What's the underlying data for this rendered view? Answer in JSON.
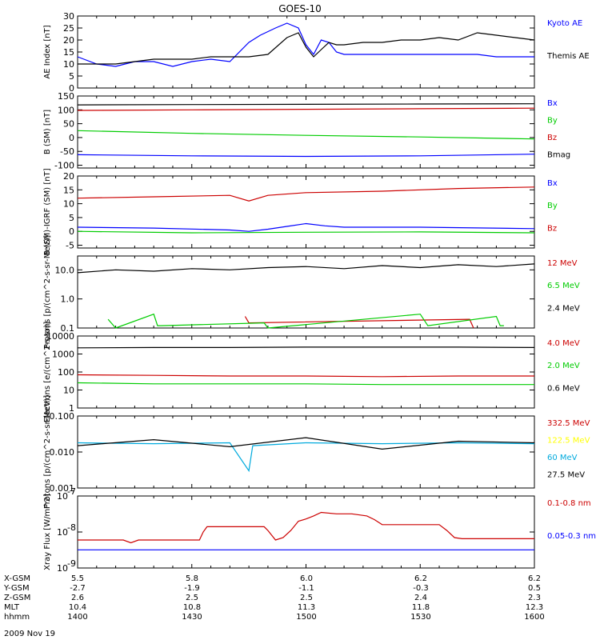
{
  "figure": {
    "title": "GOES-10",
    "date": "2009 Nov 19"
  },
  "ephemeris": {
    "rows": [
      {
        "label": "X-GSM",
        "values": [
          "5.5",
          "5.8",
          "6.0",
          "6.2",
          "6.2"
        ]
      },
      {
        "label": "Y-GSM",
        "values": [
          "-2.7",
          "-1.9",
          "-1.1",
          "-0.3",
          "0.5"
        ]
      },
      {
        "label": "Z-GSM",
        "values": [
          "2.6",
          "2.5",
          "2.5",
          "2.4",
          "2.3"
        ]
      },
      {
        "label": "MLT",
        "values": [
          "10.4",
          "10.8",
          "11.3",
          "11.8",
          "12.3"
        ]
      },
      {
        "label": "hhmm",
        "values": [
          "1400",
          "1430",
          "1500",
          "1530",
          "1600"
        ]
      }
    ]
  },
  "chart_data": [
    {
      "type": "line",
      "ylabel": "AE Index [nT]",
      "ylim": [
        0,
        30
      ],
      "yscale": "linear",
      "yticks": [
        0,
        5,
        10,
        15,
        20,
        25,
        30
      ],
      "ytick_labels": [
        "0",
        "5",
        "10",
        "15",
        "20",
        "25",
        "30"
      ],
      "xlim": [
        1400,
        1600
      ],
      "x_unit": "hhmm",
      "series": [
        {
          "name": "Kyoto AE",
          "color": "#0000ff",
          "x": [
            1400,
            1405,
            1410,
            1415,
            1420,
            1425,
            1430,
            1435,
            1440,
            1445,
            1448,
            1452,
            1455,
            1458,
            1500,
            1502,
            1504,
            1506,
            1508,
            1510,
            1515,
            1520,
            1530,
            1540,
            1545,
            1550,
            1555,
            1600
          ],
          "values": [
            13,
            10,
            9,
            11,
            11,
            9,
            11,
            12,
            11,
            19,
            22,
            25,
            27,
            25,
            18,
            14,
            20,
            19,
            15,
            14,
            14,
            14,
            14,
            14,
            14,
            13,
            13,
            13
          ]
        },
        {
          "name": "Themis AE",
          "color": "#000000",
          "x": [
            1400,
            1405,
            1410,
            1415,
            1420,
            1425,
            1430,
            1435,
            1440,
            1445,
            1450,
            1455,
            1458,
            1500,
            1502,
            1504,
            1506,
            1508,
            1510,
            1515,
            1520,
            1525,
            1530,
            1535,
            1540,
            1545,
            1550,
            1555,
            1600
          ],
          "values": [
            10,
            10,
            10,
            11,
            12,
            12,
            12,
            13,
            13,
            13,
            14,
            21,
            23,
            17,
            13,
            16,
            19,
            18,
            18,
            19,
            19,
            20,
            20,
            21,
            20,
            23,
            22,
            21,
            20
          ]
        }
      ]
    },
    {
      "type": "line",
      "ylabel": "B (SM) [nT]",
      "ylim": [
        -110,
        150
      ],
      "yscale": "linear",
      "yticks": [
        -100,
        -50,
        0,
        50,
        100,
        150
      ],
      "ytick_labels": [
        "-100",
        "-50",
        "0",
        "50",
        "100",
        "150"
      ],
      "xlim": [
        1400,
        1600
      ],
      "x_unit": "hhmm",
      "series": [
        {
          "name": "Bx",
          "color": "#0000ff",
          "x": [
            1400,
            1430,
            1500,
            1530,
            1600
          ],
          "values": [
            -62,
            -66,
            -68,
            -66,
            -60
          ]
        },
        {
          "name": "By",
          "color": "#00cc00",
          "x": [
            1400,
            1430,
            1500,
            1530,
            1600
          ],
          "values": [
            25,
            15,
            8,
            2,
            -5
          ]
        },
        {
          "name": "Bz",
          "color": "#cc0000",
          "x": [
            1400,
            1430,
            1500,
            1530,
            1600
          ],
          "values": [
            98,
            100,
            102,
            104,
            106
          ]
        },
        {
          "name": "Bmag",
          "color": "#000000",
          "x": [
            1400,
            1430,
            1500,
            1530,
            1600
          ],
          "values": [
            118,
            119,
            120,
            121,
            122
          ]
        }
      ]
    },
    {
      "type": "line",
      "ylabel": "B (SM)-IGRF (SM) [nT]",
      "ylim": [
        -6,
        20
      ],
      "yscale": "linear",
      "yticks": [
        -5,
        0,
        5,
        10,
        15,
        20
      ],
      "ytick_labels": [
        "-5",
        "0",
        "5",
        "10",
        "15",
        "20"
      ],
      "xlim": [
        1400,
        1600
      ],
      "x_unit": "hhmm",
      "series": [
        {
          "name": "Bx",
          "color": "#0000ff",
          "x": [
            1400,
            1420,
            1440,
            1445,
            1450,
            1455,
            1500,
            1505,
            1510,
            1530,
            1600
          ],
          "values": [
            1.5,
            1.2,
            0.5,
            0,
            0.8,
            1.8,
            2.8,
            2.0,
            1.5,
            1.5,
            1.0
          ]
        },
        {
          "name": "By",
          "color": "#00cc00",
          "x": [
            1400,
            1430,
            1500,
            1530,
            1600
          ],
          "values": [
            0,
            -0.5,
            -0.3,
            -0.2,
            -0.5
          ]
        },
        {
          "name": "Bz",
          "color": "#cc0000",
          "x": [
            1400,
            1420,
            1440,
            1445,
            1450,
            1500,
            1520,
            1540,
            1600
          ],
          "values": [
            12,
            12.5,
            13,
            11,
            13,
            14,
            14.5,
            15.5,
            16
          ]
        }
      ]
    },
    {
      "type": "line",
      "ylabel": "Protons [p/(cm^2-s-sr-MeV)]",
      "ylim": [
        0.1,
        30
      ],
      "yscale": "log",
      "yticks": [
        0.1,
        1,
        10
      ],
      "ytick_labels": [
        "0.1",
        "1.0",
        "10.0"
      ],
      "xlim": [
        1400,
        1600
      ],
      "x_unit": "hhmm",
      "series": [
        {
          "name": "12 MeV",
          "color": "#cc0000",
          "x": [
            1444,
            1445,
            1543,
            1544
          ],
          "values": [
            0.25,
            0.15,
            0.2,
            0.1
          ]
        },
        {
          "name": "6.5 MeV",
          "color": "#00cc00",
          "x": [
            1408,
            1410,
            1420,
            1421,
            1422,
            1449,
            1450,
            1530,
            1532,
            1550,
            1551,
            1552
          ],
          "values": [
            0.2,
            0.1,
            0.3,
            0.12,
            0.12,
            0.15,
            0.1,
            0.3,
            0.12,
            0.25,
            0.12,
            0.12
          ]
        },
        {
          "name": "2.4 MeV",
          "color": "#000000",
          "x": [
            1400,
            1410,
            1420,
            1430,
            1440,
            1450,
            1500,
            1510,
            1520,
            1530,
            1540,
            1550,
            1600
          ],
          "values": [
            8,
            10,
            9,
            11,
            10,
            12,
            13,
            11,
            14,
            12,
            15,
            13,
            16
          ]
        }
      ]
    },
    {
      "type": "line",
      "ylabel": "Electrons [e/(cm^2-s-sr)]",
      "ylim": [
        1,
        10000
      ],
      "yscale": "log",
      "yticks": [
        1,
        10,
        100,
        1000,
        10000
      ],
      "ytick_labels": [
        "1",
        "10",
        "100",
        "1000",
        "10000"
      ],
      "xlim": [
        1400,
        1600
      ],
      "x_unit": "hhmm",
      "series": [
        {
          "name": "4.0 MeV",
          "color": "#cc0000",
          "x": [
            1400,
            1420,
            1440,
            1500,
            1520,
            1540,
            1600
          ],
          "values": [
            70,
            65,
            60,
            60,
            55,
            60,
            60
          ]
        },
        {
          "name": "2.0 MeV",
          "color": "#00cc00",
          "x": [
            1400,
            1420,
            1440,
            1500,
            1520,
            1540,
            1600
          ],
          "values": [
            25,
            22,
            22,
            22,
            20,
            20,
            20
          ]
        },
        {
          "name": "0.6 MeV",
          "color": "#000000",
          "x": [
            1400,
            1420,
            1440,
            1500,
            1520,
            1540,
            1600
          ],
          "values": [
            2200,
            2300,
            2300,
            2400,
            2400,
            2400,
            2300
          ]
        }
      ]
    },
    {
      "type": "line",
      "ylabel": "Protons [p/(cm^2-s-sr-MeV)]",
      "ylim": [
        0.001,
        0.1
      ],
      "yscale": "log",
      "yticks": [
        0.001,
        0.01,
        0.1
      ],
      "ytick_labels": [
        "0.001",
        "0.010",
        "0.100"
      ],
      "xlim": [
        1400,
        1600
      ],
      "x_unit": "hhmm",
      "series": [
        {
          "name": "332.5 MeV",
          "color": "#cc0000",
          "x": [],
          "values": []
        },
        {
          "name": "122.5 MeV",
          "color": "#ffff00",
          "x": [],
          "values": []
        },
        {
          "name": "60 MeV",
          "color": "#00aadd",
          "x": [
            1400,
            1420,
            1440,
            1445,
            1446,
            1500,
            1520,
            1540,
            1600
          ],
          "values": [
            0.018,
            0.017,
            0.018,
            0.003,
            0.015,
            0.018,
            0.017,
            0.018,
            0.017
          ]
        },
        {
          "name": "27.5 MeV",
          "color": "#000000",
          "x": [
            1400,
            1420,
            1440,
            1500,
            1520,
            1540,
            1600
          ],
          "values": [
            0.015,
            0.022,
            0.014,
            0.025,
            0.012,
            0.02,
            0.018
          ]
        }
      ]
    },
    {
      "type": "line",
      "ylabel": "Xray Flux [W/m^2]",
      "ylim": [
        1e-09,
        1e-07
      ],
      "yscale": "log",
      "yticks": [
        1e-09,
        1e-08,
        1e-07
      ],
      "ytick_labels": [
        "10^-9",
        "10^-8",
        "10^-7"
      ],
      "xlim": [
        1400,
        1600
      ],
      "x_unit": "hhmm",
      "series": [
        {
          "name": "0.1-0.8 nm",
          "color": "#cc0000",
          "x": [
            1400,
            1412,
            1414,
            1416,
            1432,
            1433,
            1434,
            1449,
            1450,
            1452,
            1454,
            1456,
            1458,
            1500,
            1502,
            1504,
            1508,
            1512,
            1516,
            1518,
            1520,
            1535,
            1537,
            1539,
            1541,
            1600
          ],
          "values": [
            6e-09,
            6e-09,
            5e-09,
            6e-09,
            6e-09,
            1e-08,
            1.4e-08,
            1.4e-08,
            1.1e-08,
            6e-09,
            7e-09,
            1.1e-08,
            2e-08,
            2.3e-08,
            2.8e-08,
            3.5e-08,
            3.2e-08,
            3.2e-08,
            2.8e-08,
            2.2e-08,
            1.6e-08,
            1.6e-08,
            1.1e-08,
            7e-09,
            6.5e-09,
            6.5e-09
          ]
        },
        {
          "name": "0.05-0.3 nm",
          "color": "#0000ff",
          "x": [
            1400,
            1500,
            1600
          ],
          "values": [
            3.2e-09,
            3.2e-09,
            3.2e-09
          ]
        }
      ]
    }
  ]
}
